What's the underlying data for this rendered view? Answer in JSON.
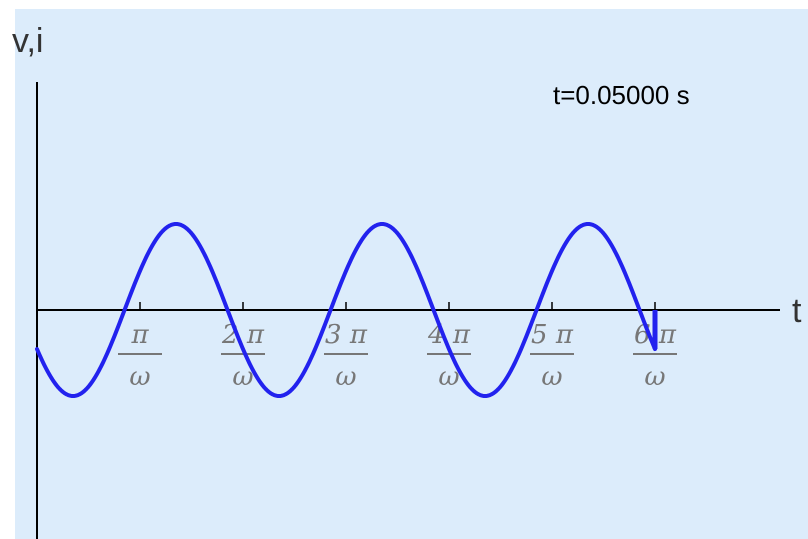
{
  "chart_data": {
    "type": "line",
    "title": "",
    "xlabel": "t",
    "ylabel": "v,i",
    "annotation": "t=0.05000 s",
    "x_unit": "π/ω",
    "xlim": [
      0,
      7
    ],
    "ylim": [
      -1,
      1
    ],
    "x_ticks": [
      {
        "value": 1,
        "numerator": "π",
        "denominator": "ω"
      },
      {
        "value": 2,
        "numerator": "2 π",
        "denominator": "ω"
      },
      {
        "value": 3,
        "numerator": "3 π",
        "denominator": "ω"
      },
      {
        "value": 4,
        "numerator": "4 π",
        "denominator": "ω"
      },
      {
        "value": 5,
        "numerator": "5 π",
        "denominator": "ω"
      },
      {
        "value": 6,
        "numerator": "6 π",
        "denominator": "ω"
      }
    ],
    "series": [
      {
        "amplitude": 0.96,
        "period": 2,
        "phase_offset": 0.15,
        "x_end": 6.0,
        "color": "#2222ee"
      }
    ],
    "grid": false,
    "legend": "none"
  }
}
